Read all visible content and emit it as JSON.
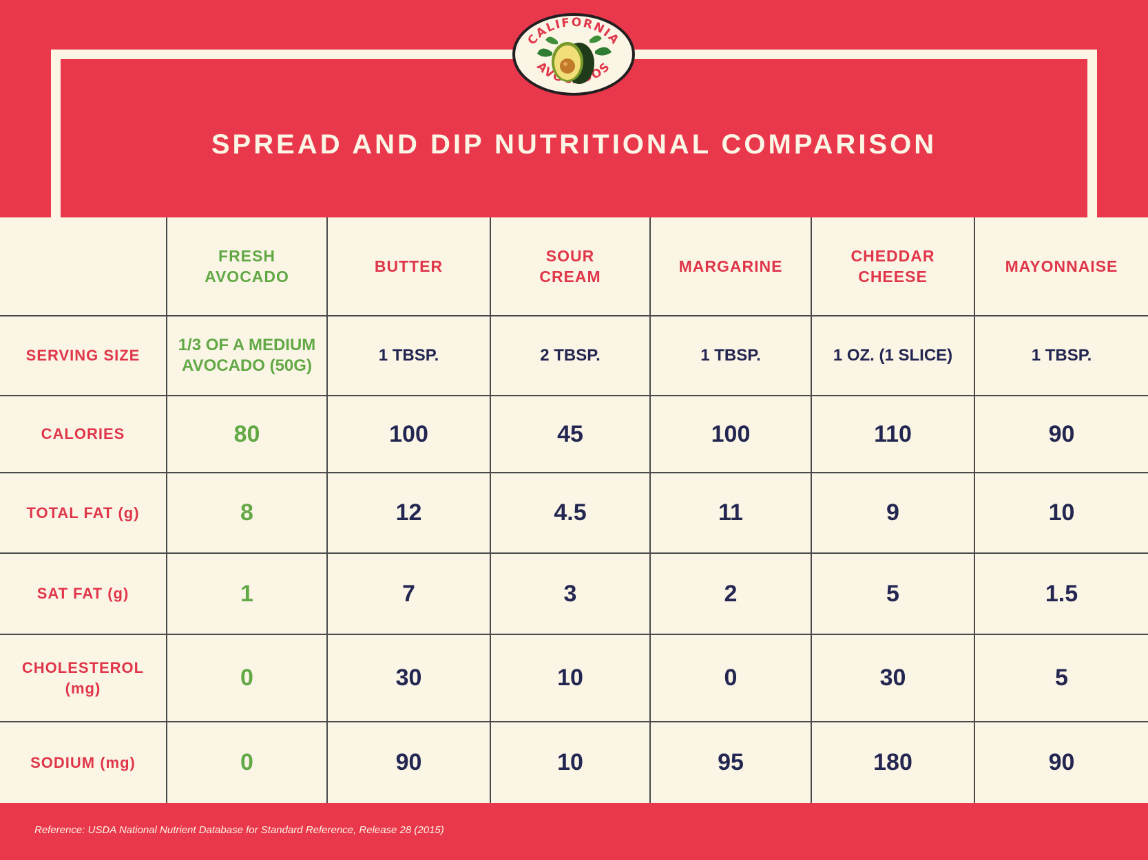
{
  "logo": {
    "top_text": "CALIFORNIA",
    "bottom_text": "AVOCADOS"
  },
  "title": "SPREAD AND DIP NUTRITIONAL COMPARISON",
  "columns": [
    "FRESH\nAVOCADO",
    "BUTTER",
    "SOUR\nCREAM",
    "MARGARINE",
    "CHEDDAR\nCHEESE",
    "MAYONNAISE"
  ],
  "rows": [
    {
      "label": "SERVING SIZE",
      "values": [
        "1/3 OF A MEDIUM\nAVOCADO (50G)",
        "1 TBSP.",
        "2 TBSP.",
        "1 TBSP.",
        "1 OZ. (1 SLICE)",
        "1 TBSP."
      ]
    },
    {
      "label": "CALORIES",
      "values": [
        "80",
        "100",
        "45",
        "100",
        "110",
        "90"
      ]
    },
    {
      "label": "TOTAL FAT (g)",
      "values": [
        "8",
        "12",
        "4.5",
        "11",
        "9",
        "10"
      ]
    },
    {
      "label": "SAT FAT (g)",
      "values": [
        "1",
        "7",
        "3",
        "2",
        "5",
        "1.5"
      ]
    },
    {
      "label": "CHOLESTEROL\n(mg)",
      "values": [
        "0",
        "30",
        "10",
        "0",
        "30",
        "5"
      ]
    },
    {
      "label": "SODIUM (mg)",
      "values": [
        "0",
        "90",
        "10",
        "95",
        "180",
        "90"
      ]
    }
  ],
  "footer": "Reference: USDA National Nutrient Database for Standard Reference, Release 28 (2015)",
  "colors": {
    "background_red": "#e9374b",
    "cream": "#fbf5e6",
    "label_red": "#e0364a",
    "avocado_green": "#62a845",
    "navy": "#232650",
    "grid": "#4a4a4a"
  }
}
